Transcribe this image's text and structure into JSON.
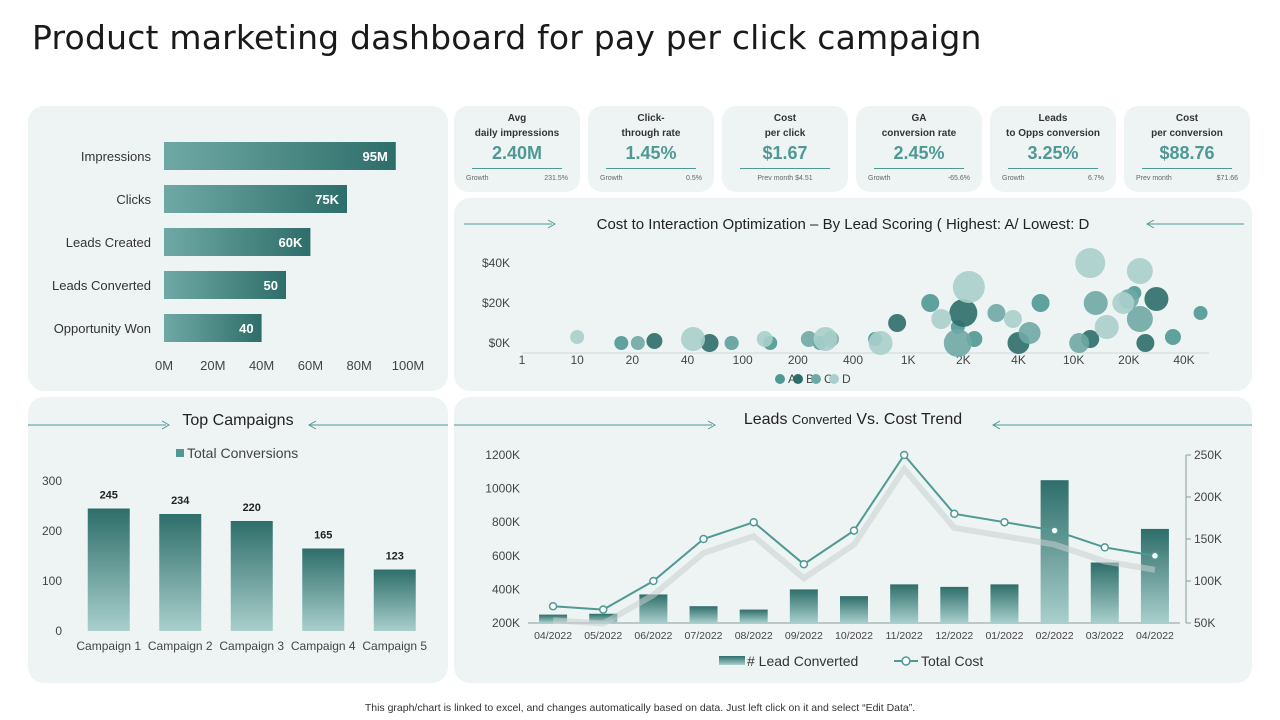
{
  "title": "Product marketing dashboard for pay per click campaign",
  "footnote": "This graph/chart is linked to excel,  and changes automatically based on data. Just left click on it and select “Edit Data”.",
  "colors": {
    "teal_dark": "#2e6e6a",
    "teal": "#4f9994",
    "teal_mid": "#6fa9a5",
    "teal_light": "#a9cfcc",
    "panel": "#eef4f4"
  },
  "kpis": [
    {
      "line1": "Avg",
      "line2": "daily impressions",
      "value": "2.40M",
      "foot_label": "Growth",
      "foot_value": "231.5%"
    },
    {
      "line1": "Click-",
      "line2": "through rate",
      "value": "1.45%",
      "foot_label": "Growth",
      "foot_value": "0.5%"
    },
    {
      "line1": "Cost",
      "line2": "per click",
      "value": "$1.67",
      "foot_label": "Prev month $4.51",
      "foot_value": ""
    },
    {
      "line1": "GA",
      "line2": "conversion rate",
      "value": "2.45%",
      "foot_label": "Growth",
      "foot_value": "-65.6%"
    },
    {
      "line1": "Leads",
      "line2": "to Opps conversion",
      "value": "3.25%",
      "foot_label": "Growth",
      "foot_value": "6.7%"
    },
    {
      "line1": "Cost",
      "line2": "per conversion",
      "value": "$88.76",
      "foot_label": "Prev month",
      "foot_value": "$71.66"
    }
  ],
  "chart_data": [
    {
      "type": "bar",
      "orientation": "horizontal",
      "title": "",
      "categories": [
        "Impressions",
        "Clicks",
        "Leads Created",
        "Leads Converted",
        "Opportunity Won"
      ],
      "values": [
        95,
        75,
        60,
        50,
        40
      ],
      "data_labels": [
        "95M",
        "75K",
        "60K",
        "50",
        "40"
      ],
      "x_ticks": [
        "0M",
        "20M",
        "40M",
        "60M",
        "80M",
        "100M"
      ],
      "xlim": [
        0,
        100
      ]
    },
    {
      "type": "scatter",
      "title": "Cost to Interaction Optimization – By Lead Scoring ( Highest: A/ Lowest: D",
      "x_ticks": [
        "1",
        "10",
        "20",
        "40",
        "100",
        "200",
        "400",
        "1K",
        "2K",
        "4K",
        "10K",
        "20K",
        "40K"
      ],
      "y_ticks": [
        "$40K",
        "$20K",
        "$0K"
      ],
      "x_scale": "categorical-log",
      "ylim": [
        -5,
        45
      ],
      "legend": [
        "A",
        "B",
        "C",
        "D"
      ],
      "series": [
        {
          "name": "A",
          "points": [
            [
              1.8,
              0,
              7
            ],
            [
              3.8,
              0,
              7
            ],
            [
              5.4,
              0,
              7
            ],
            [
              6.4,
              2,
              7
            ],
            [
              7.4,
              20,
              9
            ],
            [
              8.2,
              2,
              8
            ],
            [
              9.4,
              20,
              9
            ],
            [
              11.1,
              25,
              7
            ],
            [
              11.8,
              3,
              8
            ],
            [
              12.3,
              15,
              7
            ],
            [
              4.5,
              0,
              7
            ],
            [
              7.9,
              8,
              7
            ]
          ]
        },
        {
          "name": "B",
          "points": [
            [
              2.4,
              1,
              8
            ],
            [
              3.4,
              0,
              9
            ],
            [
              6.8,
              10,
              9
            ],
            [
              8.0,
              15,
              14
            ],
            [
              9.0,
              0,
              11
            ],
            [
              10.3,
              2,
              9
            ],
            [
              11.3,
              0,
              9
            ],
            [
              11.5,
              22,
              12
            ]
          ]
        },
        {
          "name": "C",
          "points": [
            [
              2.1,
              0,
              7
            ],
            [
              3.8,
              0,
              7
            ],
            [
              5.2,
              2,
              8
            ],
            [
              5.6,
              2,
              8
            ],
            [
              7.9,
              0,
              14
            ],
            [
              8.6,
              15,
              9
            ],
            [
              9.2,
              5,
              11
            ],
            [
              10.1,
              0,
              10
            ],
            [
              10.4,
              20,
              12
            ],
            [
              11.0,
              22,
              10
            ],
            [
              11.2,
              12,
              13
            ]
          ]
        },
        {
          "name": "D",
          "points": [
            [
              1.0,
              3,
              7
            ],
            [
              3.1,
              2,
              12
            ],
            [
              4.4,
              2,
              8
            ],
            [
              5.5,
              2,
              12
            ],
            [
              6.5,
              0,
              12
            ],
            [
              7.6,
              12,
              10
            ],
            [
              8.1,
              28,
              16
            ],
            [
              8.9,
              12,
              9
            ],
            [
              10.3,
              40,
              15
            ],
            [
              10.6,
              8,
              12
            ],
            [
              11.2,
              36,
              13
            ],
            [
              10.9,
              20,
              11
            ]
          ]
        }
      ]
    },
    {
      "type": "bar",
      "title": "Top Campaigns",
      "legend": [
        "Total Conversions"
      ],
      "categories": [
        "Campaign 1",
        "Campaign 2",
        "Campaign 3",
        "Campaign 4",
        "Campaign 5"
      ],
      "values": [
        245,
        234,
        220,
        165,
        123
      ],
      "y_ticks": [
        "300",
        "200",
        "100",
        "0"
      ],
      "ylim": [
        0,
        300
      ]
    },
    {
      "type": "bar+line",
      "title_main": "Leads ",
      "title_small": "Converted",
      "title_rest": " Vs. Cost Trend",
      "categories": [
        "04/2022",
        "05/2022",
        "06/2022",
        "07/2022",
        "08/2022",
        "09/2022",
        "10/2022",
        "11/2022",
        "12/2022",
        "01/2022",
        "02/2022",
        "03/2022",
        "04/2022"
      ],
      "series": [
        {
          "name": "# Lead Converted",
          "type": "bar",
          "axis": "left",
          "values": [
            250,
            255,
            370,
            300,
            280,
            400,
            360,
            430,
            415,
            430,
            1050,
            560,
            760
          ]
        },
        {
          "name": "Total Cost",
          "type": "line",
          "axis": "right",
          "values": [
            70,
            66,
            100,
            150,
            170,
            120,
            160,
            250,
            180,
            170,
            160,
            140,
            130
          ]
        }
      ],
      "left_ticks": [
        "1200K",
        "1000K",
        "800K",
        "600K",
        "400K",
        "200K"
      ],
      "right_ticks": [
        "250K",
        "200K",
        "150K",
        "100K",
        "50K"
      ],
      "ylim_left": [
        200,
        1200
      ],
      "ylim_right": [
        50,
        250
      ]
    }
  ]
}
